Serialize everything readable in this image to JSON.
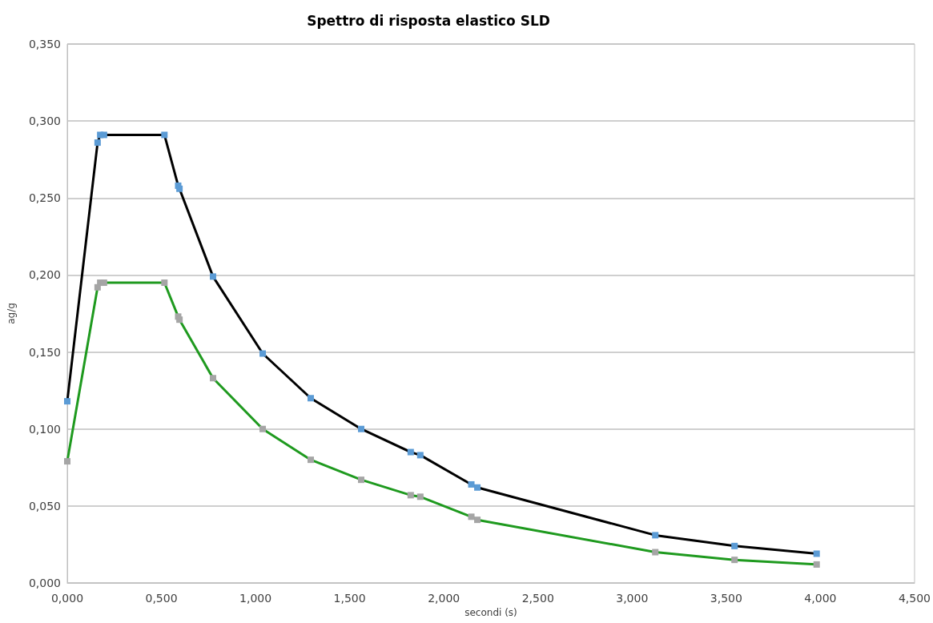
{
  "chart_data": {
    "type": "line",
    "title": "Spettro di risposta elastico SLD",
    "xlabel": "secondi (s)",
    "ylabel": "ag/g",
    "x": [
      0,
      0.161,
      0.175,
      0.195,
      0.516,
      0.589,
      0.596,
      0.774,
      1.038,
      1.293,
      1.561,
      1.824,
      1.875,
      2.146,
      2.178,
      3.123,
      3.544,
      3.98
    ],
    "series": [
      {
        "color": "#000000",
        "colors": [
          "#5b9bd5",
          "#5b9bd5",
          "#5b9bd5",
          "#5b9bd5",
          "#5b9bd5",
          "#5b9bd5",
          "#5b9bd5",
          "#5b9bd5",
          "#5b9bd5",
          "#5b9bd5",
          "#5b9bd5",
          "#5b9bd5",
          "#5b9bd5",
          "#5b9bd5",
          "#5b9bd5",
          "#5b9bd5",
          "#5b9bd5",
          "#5b9bd5"
        ],
        "values": [
          0.118,
          0.286,
          0.291,
          0.291,
          0.291,
          0.258,
          0.256,
          0.199,
          0.149,
          0.12,
          0.1,
          0.085,
          0.083,
          0.064,
          0.062,
          0.031,
          0.024,
          0.019
        ]
      },
      {
        "color": "#1f9a1f",
        "colors": [
          "#a5a5a5",
          "#a5a5a5",
          "#a5a5a5",
          "#a5a5a5",
          "#a5a5a5",
          "#a5a5a5",
          "#a5a5a5",
          "#a5a5a5",
          "#a5a5a5",
          "#a5a5a5",
          "#a5a5a5",
          "#a5a5a5",
          "#a5a5a5",
          "#a5a5a5",
          "#a5a5a5",
          "#a5a5a5",
          "#a5a5a5",
          "#a5a5a5"
        ],
        "values": [
          0.079,
          0.192,
          0.195,
          0.195,
          0.195,
          0.173,
          0.171,
          0.133,
          0.1,
          0.08,
          0.067,
          0.057,
          0.056,
          0.043,
          0.041,
          0.02,
          0.015,
          0.012
        ]
      }
    ],
    "xlim": [
      0,
      4.5
    ],
    "xticks": [
      {
        "value": 0,
        "label": "0,000"
      },
      {
        "value": 0.5,
        "label": "0,500"
      },
      {
        "value": 1,
        "label": "1,000"
      },
      {
        "value": 1.5,
        "label": "1,500"
      },
      {
        "value": 2,
        "label": "2,000"
      },
      {
        "value": 2.5,
        "label": "2,500"
      },
      {
        "value": 3,
        "label": "3,000"
      },
      {
        "value": 3.5,
        "label": "3,500"
      },
      {
        "value": 4,
        "label": "4,000"
      },
      {
        "value": 4.5,
        "label": "4,500"
      }
    ],
    "ylim": [
      0,
      0.35
    ],
    "yticks": [
      {
        "value": 0,
        "label": "0,000"
      },
      {
        "value": 0.05,
        "label": "0,050"
      },
      {
        "value": 0.1,
        "label": "0,100"
      },
      {
        "value": 0.15,
        "label": "0,150"
      },
      {
        "value": 0.2,
        "label": "0,200"
      },
      {
        "value": 0.25,
        "label": "0,250"
      },
      {
        "value": 0.3,
        "label": "0,300"
      },
      {
        "value": 0.35,
        "label": "0,350"
      }
    ],
    "grid": "y",
    "marker": "square",
    "line_style": "solid"
  }
}
